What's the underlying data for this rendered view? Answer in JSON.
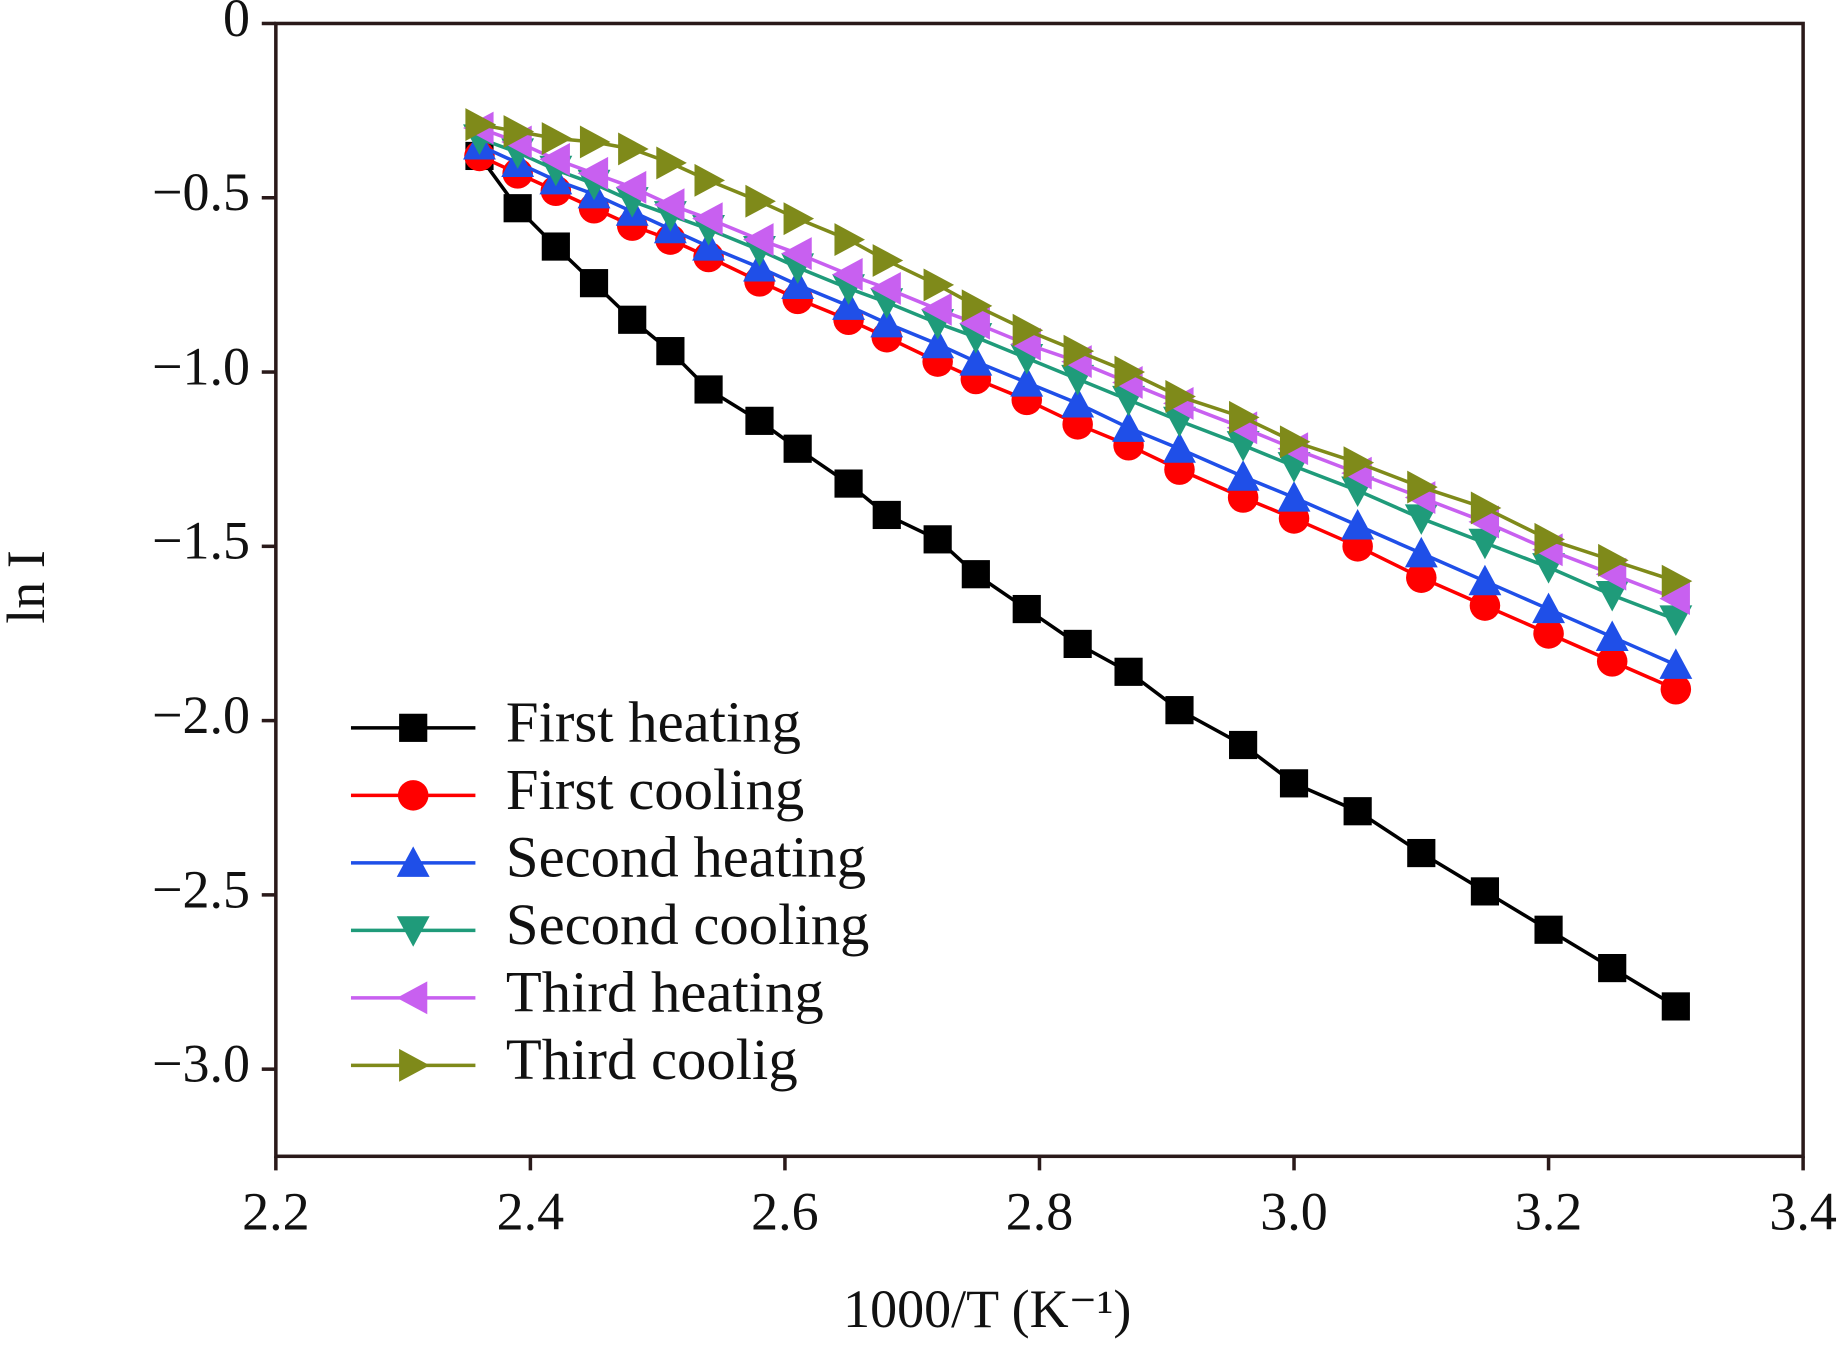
{
  "chart_data": {
    "type": "line",
    "xlabel": "1000/T (K⁻¹)",
    "ylabel": "ln I",
    "x": [
      2.36,
      2.39,
      2.42,
      2.45,
      2.48,
      2.51,
      2.54,
      2.58,
      2.61,
      2.65,
      2.68,
      2.72,
      2.75,
      2.79,
      2.83,
      2.87,
      2.91,
      2.96,
      3.0,
      3.05,
      3.1,
      3.15,
      3.2,
      3.25,
      3.3
    ],
    "series": [
      {
        "name": "First heating",
        "color": "#000000",
        "marker": "square",
        "values": [
          -0.38,
          -0.53,
          -0.64,
          -0.745,
          -0.85,
          -0.94,
          -1.05,
          -1.14,
          -1.22,
          -1.32,
          -1.41,
          -1.48,
          -1.58,
          -1.68,
          -1.78,
          -1.86,
          -1.97,
          -2.07,
          -2.18,
          -2.26,
          -2.38,
          -2.49,
          -2.6,
          -2.71,
          -2.82
        ]
      },
      {
        "name": "First cooling",
        "color": "#ff0000",
        "marker": "circle",
        "values": [
          -0.38,
          -0.43,
          -0.48,
          -0.53,
          -0.58,
          -0.62,
          -0.67,
          -0.74,
          -0.79,
          -0.85,
          -0.9,
          -0.97,
          -1.02,
          -1.08,
          -1.15,
          -1.21,
          -1.28,
          -1.36,
          -1.42,
          -1.5,
          -1.59,
          -1.67,
          -1.75,
          -1.83,
          -1.91
        ]
      },
      {
        "name": "Second heating",
        "color": "#1f4fe8",
        "marker": "triangle-up",
        "values": [
          -0.35,
          -0.4,
          -0.45,
          -0.49,
          -0.54,
          -0.59,
          -0.64,
          -0.7,
          -0.75,
          -0.81,
          -0.86,
          -0.92,
          -0.97,
          -1.03,
          -1.09,
          -1.16,
          -1.22,
          -1.3,
          -1.36,
          -1.44,
          -1.52,
          -1.6,
          -1.68,
          -1.76,
          -1.84
        ]
      },
      {
        "name": "Second cooling",
        "color": "#1f9b7a",
        "marker": "triangle-down",
        "values": [
          -0.33,
          -0.37,
          -0.42,
          -0.46,
          -0.51,
          -0.55,
          -0.59,
          -0.65,
          -0.7,
          -0.76,
          -0.8,
          -0.86,
          -0.9,
          -0.96,
          -1.02,
          -1.08,
          -1.14,
          -1.21,
          -1.27,
          -1.34,
          -1.42,
          -1.49,
          -1.56,
          -1.64,
          -1.71
        ]
      },
      {
        "name": "Third heating",
        "color": "#c860f0",
        "marker": "triangle-left",
        "values": [
          -0.3,
          -0.34,
          -0.39,
          -0.43,
          -0.47,
          -0.52,
          -0.56,
          -0.62,
          -0.66,
          -0.72,
          -0.76,
          -0.82,
          -0.86,
          -0.92,
          -0.97,
          -1.03,
          -1.09,
          -1.16,
          -1.22,
          -1.29,
          -1.36,
          -1.43,
          -1.51,
          -1.58,
          -1.65
        ]
      },
      {
        "name": "Third coolig",
        "color": "#7f8a1a",
        "marker": "triangle-right",
        "values": [
          -0.29,
          -0.31,
          -0.33,
          -0.34,
          -0.36,
          -0.4,
          -0.45,
          -0.51,
          -0.56,
          -0.62,
          -0.68,
          -0.75,
          -0.81,
          -0.88,
          -0.94,
          -1.0,
          -1.07,
          -1.13,
          -1.2,
          -1.26,
          -1.33,
          -1.39,
          -1.48,
          -1.54,
          -1.6
        ]
      }
    ],
    "xlim": [
      2.2,
      3.4
    ],
    "xticks": [
      2.2,
      2.4,
      2.6,
      2.8,
      {
        "value": 3,
        "label": "3.0"
      },
      3.2,
      3.4
    ],
    "ylim": [
      -3.25,
      0
    ],
    "yticks": [
      0,
      {
        "value": -0.5,
        "label": "−0.5"
      },
      {
        "value": -1,
        "label": "−1.0"
      },
      {
        "value": -1.5,
        "label": "−1.5"
      },
      {
        "value": -2,
        "label": "−2.0"
      },
      {
        "value": -2.5,
        "label": "−2.5"
      },
      {
        "value": -3,
        "label": "−3.0"
      }
    ],
    "grid": false,
    "legend": "lower left"
  }
}
